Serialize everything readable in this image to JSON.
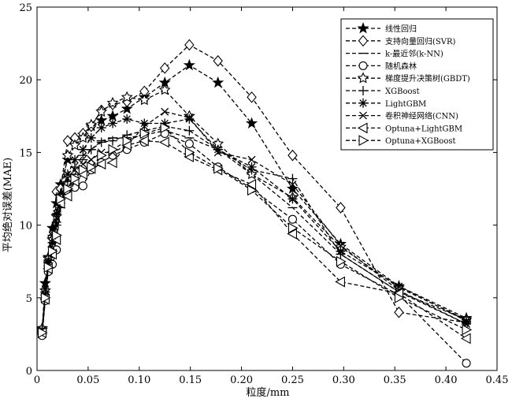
{
  "chart_data": {
    "type": "line",
    "xlabel": "粒度/mm",
    "ylabel": "平均绝对误差(MAE)",
    "xlim": [
      0,
      0.45
    ],
    "ylim": [
      0,
      25
    ],
    "xticks": [
      0,
      0.05,
      0.1,
      0.15,
      0.2,
      0.25,
      0.3,
      0.35,
      0.4,
      0.45
    ],
    "xtick_labels": [
      "0",
      "0.05",
      "0.10",
      "0.15",
      "0.20",
      "0.25",
      "0.30",
      "0.35",
      "0.40",
      "0.45"
    ],
    "yticks": [
      0,
      5,
      10,
      15,
      20,
      25
    ],
    "ytick_labels": [
      "0",
      "5",
      "10",
      "15",
      "20",
      "25"
    ],
    "legend_position": "top-right",
    "grid": false,
    "x": [
      0.005,
      0.008,
      0.011,
      0.015,
      0.019,
      0.023,
      0.03,
      0.037,
      0.045,
      0.053,
      0.063,
      0.074,
      0.088,
      0.105,
      0.125,
      0.149,
      0.177,
      0.21,
      0.25,
      0.297,
      0.354,
      0.42
    ],
    "series": [
      {
        "name": "线性回归",
        "marker": "star-filled",
        "values": [
          2.8,
          6.0,
          7.8,
          9.8,
          11.5,
          12.8,
          14.5,
          15.5,
          16.2,
          16.8,
          17.2,
          17.5,
          18.0,
          18.8,
          19.8,
          21.0,
          19.8,
          17.0,
          12.5,
          8.7,
          5.8,
          3.6
        ]
      },
      {
        "name": "支持向量回归(SVR)",
        "marker": "diamond",
        "values": [
          2.6,
          5.2,
          7.5,
          9.2,
          12.3,
          12.5,
          15.8,
          16.0,
          16.3,
          16.8,
          17.9,
          18.3,
          18.5,
          19.2,
          20.8,
          22.4,
          21.3,
          18.8,
          14.8,
          11.2,
          4.0,
          3.3
        ]
      },
      {
        "name": "k-最近邻(k-NN)",
        "marker": "dash",
        "values": [
          2.5,
          5.0,
          7.2,
          8.5,
          10.2,
          11.5,
          12.5,
          13.5,
          14.5,
          15.2,
          15.8,
          16.0,
          16.0,
          16.2,
          16.5,
          16.0,
          15.2,
          13.5,
          11.2,
          8.0,
          5.4,
          3.2
        ]
      },
      {
        "name": "随机森林",
        "marker": "circle",
        "values": [
          2.4,
          4.8,
          6.8,
          7.3,
          8.3,
          11.8,
          12.3,
          12.6,
          12.7,
          13.8,
          14.3,
          14.8,
          15.2,
          15.7,
          16.3,
          15.6,
          14.0,
          12.5,
          10.4,
          7.3,
          5.2,
          0.5
        ]
      },
      {
        "name": "梯度提升决策树(GBDT)",
        "marker": "star-open",
        "values": [
          2.9,
          5.5,
          7.7,
          9.0,
          10.6,
          12.0,
          14.8,
          15.5,
          16.0,
          16.9,
          17.8,
          18.4,
          18.8,
          18.6,
          19.3,
          17.5,
          15.6,
          13.5,
          11.9,
          8.5,
          5.7,
          3.5
        ]
      },
      {
        "name": "XGBoost",
        "marker": "plus",
        "values": [
          2.7,
          5.4,
          7.4,
          8.8,
          10.0,
          11.2,
          13.0,
          14.0,
          14.8,
          15.2,
          15.7,
          15.8,
          16.2,
          16.5,
          16.8,
          16.5,
          15.2,
          13.8,
          13.2,
          8.0,
          5.4,
          3.5
        ]
      },
      {
        "name": "LightGBM",
        "marker": "asterisk",
        "values": [
          2.8,
          5.6,
          7.6,
          9.3,
          10.8,
          12.2,
          13.5,
          14.5,
          15.2,
          16.0,
          16.7,
          17.0,
          17.3,
          17.0,
          17.0,
          17.3,
          15.2,
          14.0,
          11.8,
          8.2,
          5.8,
          3.4
        ]
      },
      {
        "name": "卷积神经网络(CNN)",
        "marker": "x",
        "values": [
          2.7,
          5.2,
          7.4,
          8.8,
          10.5,
          11.8,
          13.2,
          13.8,
          14.2,
          14.5,
          15.0,
          15.0,
          15.5,
          16.8,
          17.8,
          17.4,
          15.0,
          14.5,
          12.8,
          8.6,
          5.5,
          3.2
        ]
      },
      {
        "name": "Optuna+LightGBM",
        "marker": "triangle-left",
        "values": [
          2.6,
          4.9,
          7.0,
          8.0,
          9.0,
          11.5,
          12.0,
          13.0,
          13.5,
          13.9,
          14.2,
          14.3,
          15.5,
          15.8,
          15.7,
          14.7,
          13.8,
          12.8,
          9.4,
          6.1,
          5.3,
          2.2
        ]
      },
      {
        "name": "Optuna+XGBoost",
        "marker": "triangle-right",
        "values": [
          2.6,
          5.0,
          7.1,
          8.2,
          9.3,
          11.8,
          12.5,
          13.2,
          13.8,
          14.0,
          14.8,
          15.2,
          15.8,
          16.3,
          16.7,
          15.0,
          13.9,
          12.4,
          9.8,
          7.5,
          5.0,
          2.8
        ]
      }
    ]
  }
}
